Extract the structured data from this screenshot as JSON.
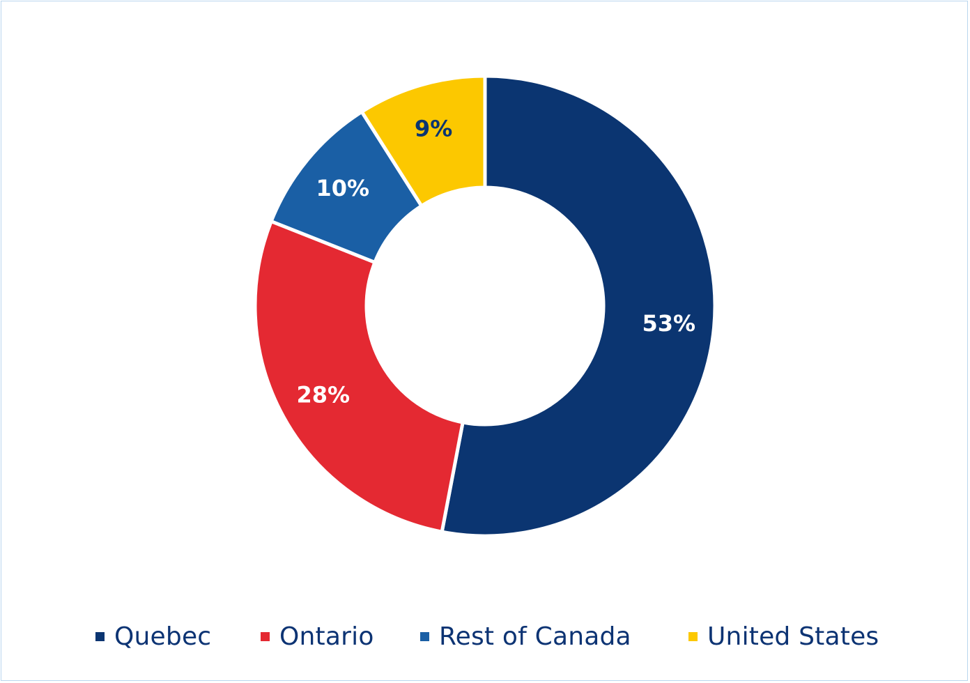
{
  "chart_data": {
    "type": "pie",
    "variant": "donut",
    "start_angle": "12 o'clock",
    "direction": "clockwise",
    "legend_position": "bottom",
    "slices": [
      {
        "name": "Quebec",
        "value": 53,
        "label": "53%",
        "color": "#0b3571",
        "label_color": "#ffffff"
      },
      {
        "name": "Ontario",
        "value": 28,
        "label": "28%",
        "color": "#e42932",
        "label_color": "#ffffff"
      },
      {
        "name": "Rest of Canada",
        "value": 10,
        "label": "10%",
        "color": "#1a5fa5",
        "label_color": "#ffffff"
      },
      {
        "name": "United States",
        "value": 9,
        "label": "9%",
        "color": "#fcc800",
        "label_color": "#0b3571"
      }
    ]
  }
}
